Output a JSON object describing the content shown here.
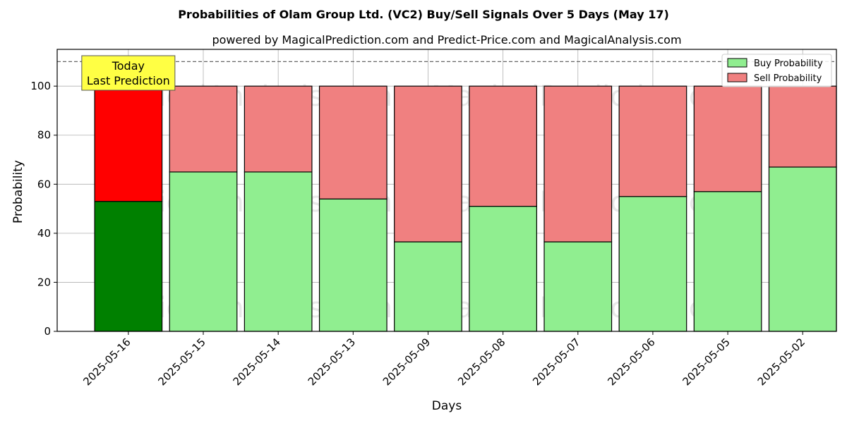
{
  "chart_data": {
    "type": "bar",
    "title": "Probabilities of Olam Group Ltd. (VC2) Buy/Sell Signals Over 5 Days (May 17)",
    "subtitle": "powered by MagicalPrediction.com and Predict-Price.com and MagicalAnalysis.com",
    "xlabel": "Days",
    "ylabel": "Probability",
    "ylim": [
      0,
      115
    ],
    "yticks": [
      0,
      20,
      40,
      60,
      80,
      100
    ],
    "grid": true,
    "legend_position": "top-right",
    "stacked": true,
    "categories": [
      "2025-05-16",
      "2025-05-15",
      "2025-05-14",
      "2025-05-13",
      "2025-05-09",
      "2025-05-08",
      "2025-05-07",
      "2025-05-06",
      "2025-05-05",
      "2025-05-02"
    ],
    "series": [
      {
        "name": "Buy Probability",
        "values": [
          53,
          65,
          65,
          54,
          36.5,
          51,
          36.5,
          55,
          57,
          67
        ],
        "color": "#90ee90",
        "highlight_color": "#008000"
      },
      {
        "name": "Sell Probability",
        "values": [
          47,
          35,
          35,
          46,
          63.5,
          49,
          63.5,
          45,
          43,
          33
        ],
        "color": "#f08080",
        "highlight_color": "#ff0000"
      }
    ],
    "highlight_index": 0,
    "reference_line": {
      "y": 110,
      "style": "dashed"
    },
    "annotation": {
      "lines": [
        "Today",
        "Last Prediction"
      ],
      "background": "#ffff44"
    },
    "watermarks": [
      "MagicalAnalysis.com",
      "MagicalPrediction.com"
    ]
  }
}
